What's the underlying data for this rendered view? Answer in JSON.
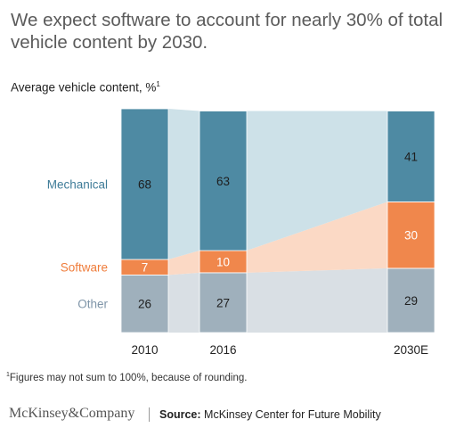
{
  "title": "We expect software to account for nearly 30% of total vehicle content by 2030.",
  "subtitle": "Average vehicle content, %",
  "subtitle_note_marker": "1",
  "footnote_marker": "1",
  "footnote": "Figures may not sum to 100%, because of rounding.",
  "brand": "McKinsey&Company",
  "source_label": "Source:",
  "source_text": "McKinsey Center for Future Mobility",
  "colors": {
    "Mechanical": "#4e8aa3",
    "Software": "#f0874c",
    "Other": "#9fb0bc",
    "Mechanical_band": "#cde1e8",
    "Software_band": "#fbd9c5",
    "Other_band": "#d9dfe4",
    "Mechanical_label": "#3f7c98",
    "Software_label": "#ef7d3c",
    "Other_label": "#7f95a8"
  },
  "chart_data": {
    "type": "bar",
    "stacked": true,
    "categories": [
      "2010",
      "2016",
      "2030E"
    ],
    "series": [
      {
        "name": "Other",
        "values": [
          26,
          27,
          29
        ]
      },
      {
        "name": "Software",
        "values": [
          7,
          10,
          30
        ]
      },
      {
        "name": "Mechanical",
        "values": [
          68,
          63,
          41
        ]
      }
    ],
    "ylim": [
      0,
      101
    ],
    "unit": "%",
    "legend_position": "left",
    "grid": false
  }
}
